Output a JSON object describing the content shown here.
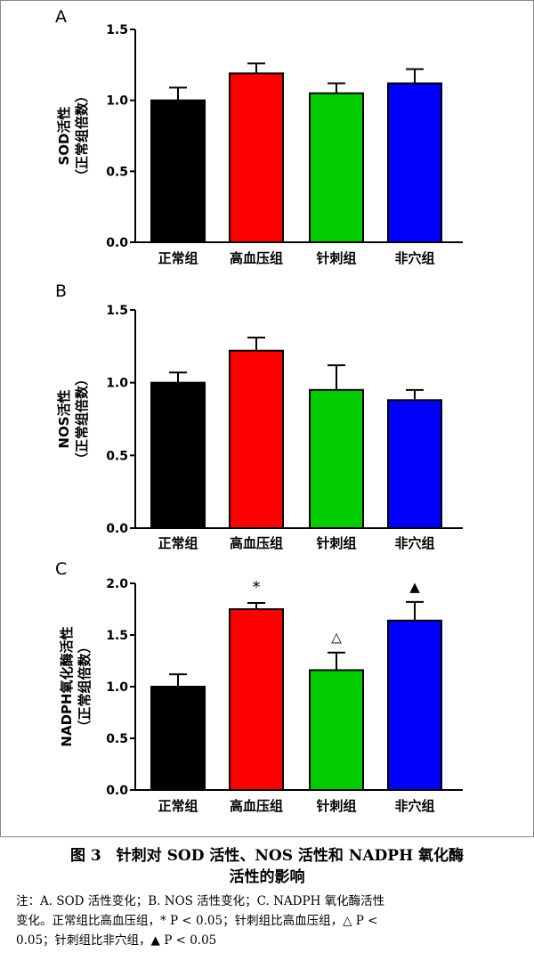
{
  "figure": {
    "caption_line1": "图 3　针刺对 SOD 活性、NOS 活性和 NADPH 氧化酶",
    "caption_line2": "活性的影响",
    "note_line1": "注：A. SOD 活性变化；B. NOS 活性变化；C. NADPH 氧化酶活性",
    "note_line2": "变化。正常组比高血压组，* P < 0.05；针刺组比高血压组，△ P <",
    "note_line3": "0.05；针刺组比非穴组，▲ P < 0.05"
  },
  "colors": {
    "正常组": "#000000",
    "高血压组": "#ff0000",
    "针刺组": "#00cc00",
    "非穴组": "#0000ff"
  },
  "chart_data": [
    {
      "type": "bar",
      "panel": "A",
      "categories": [
        "正常组",
        "高血压组",
        "针刺组",
        "非穴组"
      ],
      "values": [
        1.0,
        1.19,
        1.05,
        1.12
      ],
      "errors": [
        0.09,
        0.07,
        0.07,
        0.1
      ],
      "annotations": [
        "",
        "",
        "",
        ""
      ],
      "ylabel": "SOD活性",
      "ylabel2": "（正常组倍数）",
      "ylim": [
        0,
        1.5
      ],
      "yticks": [
        "0.0",
        "0.5",
        "1.0",
        "1.5"
      ]
    },
    {
      "type": "bar",
      "panel": "B",
      "categories": [
        "正常组",
        "高血压组",
        "针刺组",
        "非穴组"
      ],
      "values": [
        1.0,
        1.22,
        0.95,
        0.88
      ],
      "errors": [
        0.07,
        0.09,
        0.17,
        0.07
      ],
      "annotations": [
        "",
        "",
        "",
        ""
      ],
      "ylabel": "NOS活性",
      "ylabel2": "（正常组倍数）",
      "ylim": [
        0,
        1.5
      ],
      "yticks": [
        "0.0",
        "0.5",
        "1.0",
        "1.5"
      ]
    },
    {
      "type": "bar",
      "panel": "C",
      "categories": [
        "正常组",
        "高血压组",
        "针刺组",
        "非穴组"
      ],
      "values": [
        1.0,
        1.75,
        1.16,
        1.64
      ],
      "errors": [
        0.12,
        0.06,
        0.17,
        0.18
      ],
      "annotations": [
        "",
        "*",
        "△",
        "▲"
      ],
      "ylabel": "NADPH氧化酶活性",
      "ylabel2": "（正常组倍数）",
      "ylim": [
        0,
        2.0
      ],
      "yticks": [
        "0.0",
        "0.5",
        "1.0",
        "1.5",
        "2.0"
      ]
    }
  ]
}
